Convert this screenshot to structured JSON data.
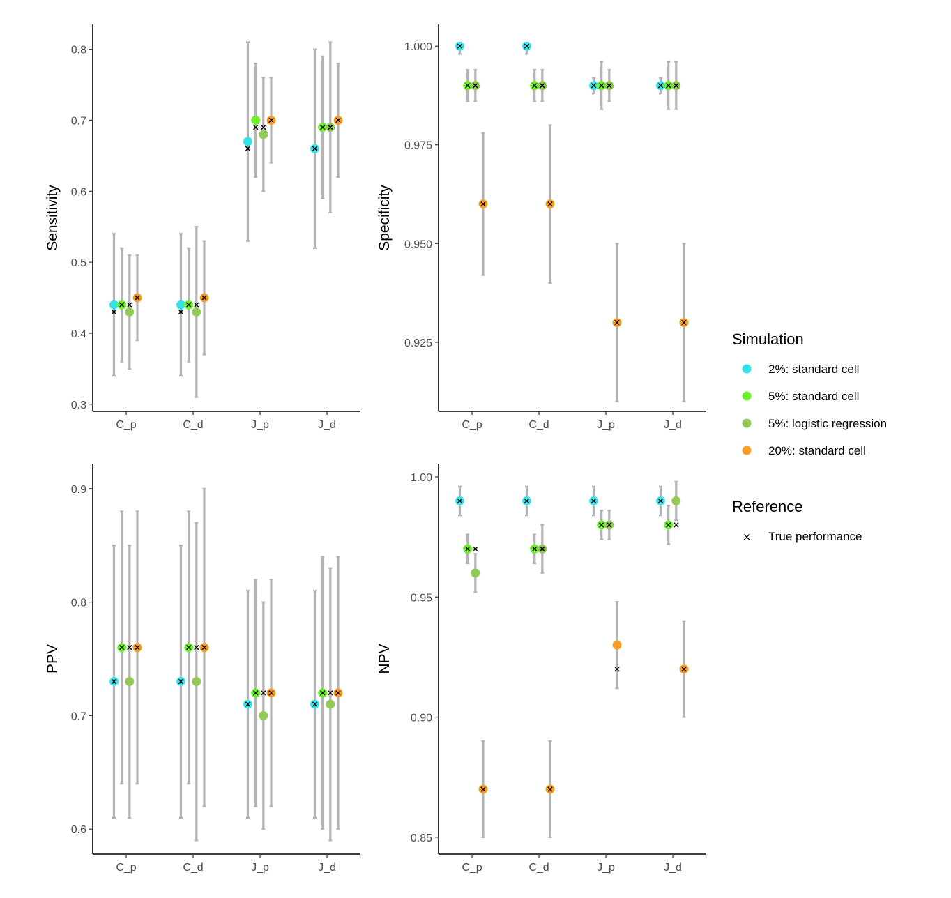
{
  "chart_data": [
    {
      "type": "scatter",
      "ylabel": "Sensitivity",
      "xlabel": "",
      "categories": [
        "C_p",
        "C_d",
        "J_p",
        "J_d"
      ],
      "ylim": [
        0.29,
        0.835
      ],
      "yticks": [
        0.3,
        0.4,
        0.5,
        0.6,
        0.7,
        0.8
      ],
      "ytick_labels": [
        "0.3",
        "0.4",
        "0.5",
        "0.6",
        "0.7",
        "0.8"
      ],
      "series": [
        {
          "name": "2%: standard cell",
          "values": [
            0.44,
            0.44,
            0.67,
            0.66
          ],
          "lower": [
            0.34,
            0.34,
            0.53,
            0.52
          ],
          "upper": [
            0.54,
            0.54,
            0.81,
            0.8
          ]
        },
        {
          "name": "5%: standard cell",
          "values": [
            0.44,
            0.44,
            0.7,
            0.69
          ],
          "lower": [
            0.36,
            0.36,
            0.62,
            0.59
          ],
          "upper": [
            0.52,
            0.52,
            0.78,
            0.79
          ]
        },
        {
          "name": "5%: logistic regression",
          "values": [
            0.43,
            0.43,
            0.68,
            0.69
          ],
          "lower": [
            0.35,
            0.31,
            0.6,
            0.57
          ],
          "upper": [
            0.51,
            0.55,
            0.76,
            0.81
          ]
        },
        {
          "name": "20%: standard cell",
          "values": [
            0.45,
            0.45,
            0.7,
            0.7
          ],
          "lower": [
            0.39,
            0.37,
            0.64,
            0.62
          ],
          "upper": [
            0.51,
            0.53,
            0.76,
            0.78
          ]
        }
      ],
      "true_performance": [
        [
          0.43,
          0.44,
          0.44,
          0.45
        ],
        [
          0.43,
          0.44,
          0.44,
          0.45
        ],
        [
          0.66,
          0.69,
          0.69,
          0.7
        ],
        [
          0.66,
          0.69,
          0.69,
          0.7
        ]
      ]
    },
    {
      "type": "scatter",
      "ylabel": "Specificity",
      "xlabel": "",
      "categories": [
        "C_p",
        "C_d",
        "J_p",
        "J_d"
      ],
      "ylim": [
        0.9075,
        1.0055
      ],
      "yticks": [
        0.925,
        0.95,
        0.975,
        1.0
      ],
      "ytick_labels": [
        "0.925",
        "0.950",
        "0.975",
        "1.000"
      ],
      "series": [
        {
          "name": "2%: standard cell",
          "values": [
            1.0,
            1.0,
            0.99,
            0.99
          ],
          "lower": [
            0.998,
            0.998,
            0.988,
            0.988
          ],
          "upper": [
            1.0,
            1.0,
            0.992,
            0.992
          ]
        },
        {
          "name": "5%: standard cell",
          "values": [
            0.99,
            0.99,
            0.99,
            0.99
          ],
          "lower": [
            0.986,
            0.986,
            0.984,
            0.984
          ],
          "upper": [
            0.994,
            0.994,
            0.996,
            0.996
          ]
        },
        {
          "name": "5%: logistic regression",
          "values": [
            0.99,
            0.99,
            0.99,
            0.99
          ],
          "lower": [
            0.986,
            0.986,
            0.986,
            0.984
          ],
          "upper": [
            0.994,
            0.994,
            0.994,
            0.996
          ]
        },
        {
          "name": "20%: standard cell",
          "values": [
            0.96,
            0.96,
            0.93,
            0.93
          ],
          "lower": [
            0.942,
            0.94,
            0.91,
            0.91
          ],
          "upper": [
            0.978,
            0.98,
            0.95,
            0.95
          ]
        }
      ],
      "true_performance": [
        [
          1.0,
          0.99,
          0.99,
          0.96
        ],
        [
          1.0,
          0.99,
          0.99,
          0.96
        ],
        [
          0.99,
          0.99,
          0.99,
          0.93
        ],
        [
          0.99,
          0.99,
          0.99,
          0.93
        ]
      ]
    },
    {
      "type": "scatter",
      "ylabel": "PPV",
      "xlabel": "",
      "categories": [
        "C_p",
        "C_d",
        "J_p",
        "J_d"
      ],
      "ylim": [
        0.578,
        0.922
      ],
      "yticks": [
        0.6,
        0.7,
        0.8,
        0.9
      ],
      "ytick_labels": [
        "0.6",
        "0.7",
        "0.8",
        "0.9"
      ],
      "series": [
        {
          "name": "2%: standard cell",
          "values": [
            0.73,
            0.73,
            0.71,
            0.71
          ],
          "lower": [
            0.61,
            0.61,
            0.61,
            0.61
          ],
          "upper": [
            0.85,
            0.85,
            0.81,
            0.81
          ]
        },
        {
          "name": "5%: standard cell",
          "values": [
            0.76,
            0.76,
            0.72,
            0.72
          ],
          "lower": [
            0.64,
            0.64,
            0.62,
            0.6
          ],
          "upper": [
            0.88,
            0.88,
            0.82,
            0.84
          ]
        },
        {
          "name": "5%: logistic regression",
          "values": [
            0.73,
            0.73,
            0.7,
            0.71
          ],
          "lower": [
            0.61,
            0.59,
            0.6,
            0.59
          ],
          "upper": [
            0.85,
            0.87,
            0.8,
            0.83
          ]
        },
        {
          "name": "20%: standard cell",
          "values": [
            0.76,
            0.76,
            0.72,
            0.72
          ],
          "lower": [
            0.64,
            0.62,
            0.62,
            0.6
          ],
          "upper": [
            0.88,
            0.9,
            0.82,
            0.84
          ]
        }
      ],
      "true_performance": [
        [
          0.73,
          0.76,
          0.76,
          0.76
        ],
        [
          0.73,
          0.76,
          0.76,
          0.76
        ],
        [
          0.71,
          0.72,
          0.72,
          0.72
        ],
        [
          0.71,
          0.72,
          0.72,
          0.72
        ]
      ]
    },
    {
      "type": "scatter",
      "ylabel": "NPV",
      "xlabel": "",
      "categories": [
        "C_p",
        "C_d",
        "J_p",
        "J_d"
      ],
      "ylim": [
        0.843,
        1.0055
      ],
      "yticks": [
        0.85,
        0.9,
        0.95,
        1.0
      ],
      "ytick_labels": [
        "0.85",
        "0.90",
        "0.95",
        "1.00"
      ],
      "series": [
        {
          "name": "2%: standard cell",
          "values": [
            0.99,
            0.99,
            0.99,
            0.99
          ],
          "lower": [
            0.984,
            0.984,
            0.984,
            0.984
          ],
          "upper": [
            0.996,
            0.996,
            0.996,
            0.996
          ]
        },
        {
          "name": "5%: standard cell",
          "values": [
            0.97,
            0.97,
            0.98,
            0.98
          ],
          "lower": [
            0.964,
            0.964,
            0.974,
            0.972
          ],
          "upper": [
            0.976,
            0.976,
            0.986,
            0.988
          ]
        },
        {
          "name": "5%: logistic regression",
          "values": [
            0.96,
            0.97,
            0.98,
            0.99
          ],
          "lower": [
            0.952,
            0.96,
            0.974,
            0.982
          ],
          "upper": [
            0.968,
            0.98,
            0.986,
            0.998
          ]
        },
        {
          "name": "20%: standard cell",
          "values": [
            0.87,
            0.87,
            0.93,
            0.92
          ],
          "lower": [
            0.85,
            0.85,
            0.912,
            0.9
          ],
          "upper": [
            0.89,
            0.89,
            0.948,
            0.94
          ]
        }
      ],
      "true_performance": [
        [
          0.99,
          0.97,
          0.97,
          0.87
        ],
        [
          0.99,
          0.97,
          0.97,
          0.87
        ],
        [
          0.99,
          0.98,
          0.98,
          0.92
        ],
        [
          0.99,
          0.98,
          0.98,
          0.92
        ]
      ]
    }
  ],
  "legend": {
    "simulation_title": "Simulation",
    "simulation_items": [
      {
        "label": "2%: standard cell",
        "color": "#33e3e8"
      },
      {
        "label": "5%: standard cell",
        "color": "#6def2a"
      },
      {
        "label": "5%: logistic regression",
        "color": "#92c957"
      },
      {
        "label": "20%: standard cell",
        "color": "#f99d26"
      }
    ],
    "reference_title": "Reference",
    "reference_items": [
      {
        "label": "True performance",
        "symbol": "×"
      }
    ]
  },
  "colors": {
    "errorbar": "#b3b3b3",
    "axis": "#000000",
    "tick_text": "#4d4d4d",
    "true_marker": "#000000"
  }
}
